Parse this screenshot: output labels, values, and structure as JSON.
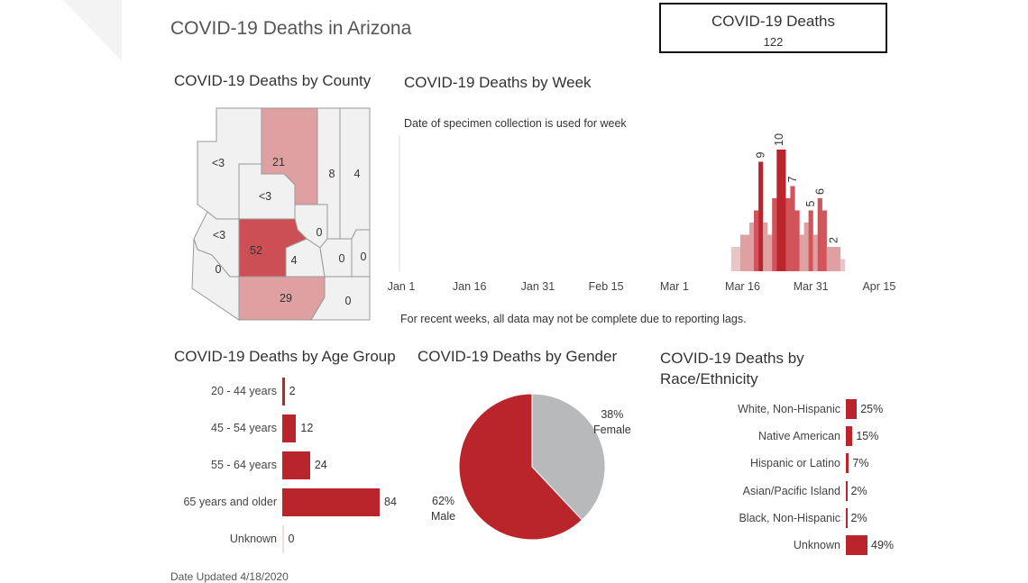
{
  "header": {
    "title": "COVID-19 Deaths in Arizona"
  },
  "kpi": {
    "label": "COVID-19 Deaths",
    "value": "122"
  },
  "county": {
    "title": "COVID-19 Deaths by County",
    "labels": [
      "<3",
      "21",
      "8",
      "4",
      "<3",
      "<3",
      "0",
      "52",
      "4",
      "0",
      "0",
      "0",
      "29",
      "0"
    ]
  },
  "week": {
    "title": "COVID-19 Deaths by Week",
    "subtitle": "Date of specimen collection is used for week",
    "note": "For recent weeks, all data may not be complete due to reporting lags.",
    "ticks": [
      "Jan 1",
      "Jan 16",
      "Jan 31",
      "Feb 15",
      "Mar 1",
      "Mar 16",
      "Mar 31",
      "Apr 15"
    ]
  },
  "age": {
    "title": "COVID-19 Deaths by Age Group"
  },
  "gender": {
    "title": "COVID-19 Deaths by Gender",
    "female_pct": "38%",
    "female_label": "Female",
    "male_pct": "62%",
    "male_label": "Male"
  },
  "race": {
    "title": "COVID-19 Deaths by Race/Ethnicity",
    "title_line1": "COVID-19 Deaths by",
    "title_line2": "Race/Ethnicity"
  },
  "footer": {
    "text": "Date Updated    4/18/2020"
  },
  "colors": {
    "accent": "#b9252b",
    "light": "#dea0a0",
    "grey": "#b7b9bb",
    "map_bg": "#f1f1f1"
  },
  "chart_data": [
    {
      "type": "bar",
      "title": "COVID-19 Deaths by Week",
      "x": [
        "Mar 14",
        "Mar 15",
        "Mar 16",
        "Mar 17",
        "Mar 18",
        "Mar 19",
        "Mar 20",
        "Mar 21",
        "Mar 22",
        "Mar 23",
        "Mar 24",
        "Mar 25",
        "Mar 26",
        "Mar 27",
        "Mar 28",
        "Mar 29",
        "Mar 30",
        "Mar 31",
        "Apr 1",
        "Apr 2",
        "Apr 3",
        "Apr 4",
        "Apr 5",
        "Apr 6",
        "Apr 7"
      ],
      "values": [
        2,
        2,
        3,
        3,
        4,
        5,
        9,
        4,
        3,
        6,
        10,
        10,
        6,
        7,
        5,
        3,
        4,
        5,
        3,
        6,
        5,
        2,
        2,
        2,
        1
      ],
      "data_labels": [
        {
          "x": "Mar 20",
          "label": "9"
        },
        {
          "x": "Mar 24",
          "label": "10"
        },
        {
          "x": "Mar 27",
          "label": "7"
        },
        {
          "x": "Mar 31",
          "label": "5"
        },
        {
          "x": "Apr 2",
          "label": "6"
        },
        {
          "x": "Apr 5",
          "label": "2"
        }
      ],
      "xlim": [
        "Jan 1",
        "Apr 17"
      ],
      "ylim": [
        0,
        10
      ],
      "grid": false
    },
    {
      "type": "bar",
      "orientation": "horizontal",
      "title": "COVID-19 Deaths by Age Group",
      "categories": [
        "20 - 44 years",
        "45 - 54 years",
        "55 - 64 years",
        "65 years and older",
        "Unknown"
      ],
      "values": [
        2,
        12,
        24,
        84,
        0
      ],
      "xlim": [
        0,
        84
      ]
    },
    {
      "type": "pie",
      "title": "COVID-19 Deaths by Gender",
      "categories": [
        "Female",
        "Male"
      ],
      "values": [
        38,
        62
      ],
      "colors": [
        "#b7b9bb",
        "#b9252b"
      ]
    },
    {
      "type": "bar",
      "orientation": "horizontal",
      "title": "COVID-19 Deaths by Race/Ethnicity",
      "categories": [
        "White, Non-Hispanic",
        "Native American",
        "Hispanic or Latino",
        "Asian/Pacific Island",
        "Black, Non-Hispanic",
        "Unknown"
      ],
      "values": [
        25,
        15,
        7,
        2,
        2,
        49
      ],
      "value_labels": [
        "25%",
        "15%",
        "7%",
        "2%",
        "2%",
        "49%"
      ],
      "xlim": [
        0,
        49
      ]
    }
  ]
}
